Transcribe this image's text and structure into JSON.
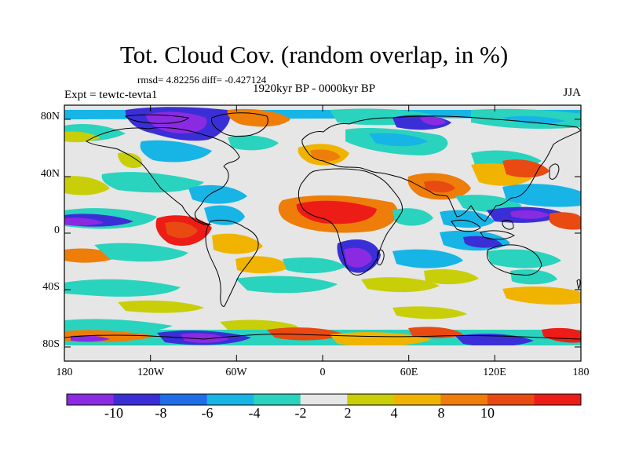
{
  "header": {
    "title": "Tot. Cloud Cov. (random overlap, in %)",
    "stats": "rmsd= 4.82256 diff= -0.427124",
    "period": "1920kyr BP - 0000kyr BP",
    "experiment": "Expt = tewtc-tevta1",
    "season": "JJA"
  },
  "axes": {
    "lat_labels": [
      "80N",
      "40N",
      "0",
      "40S",
      "80S"
    ],
    "lon_labels": [
      "180",
      "120W",
      "60W",
      "0",
      "60E",
      "120E",
      "180"
    ]
  },
  "colorbar": {
    "colors": [
      "#8a2be2",
      "#3a2fd6",
      "#1f6ee8",
      "#17b4e6",
      "#2ad3bd",
      "#e6e6e6",
      "#c8cf08",
      "#f0b400",
      "#ee7d0a",
      "#e84a12",
      "#ee1c16"
    ],
    "labels": [
      "-10",
      "-8",
      "-6",
      "-4",
      "-2",
      "2",
      "4",
      "8",
      "10"
    ]
  }
}
